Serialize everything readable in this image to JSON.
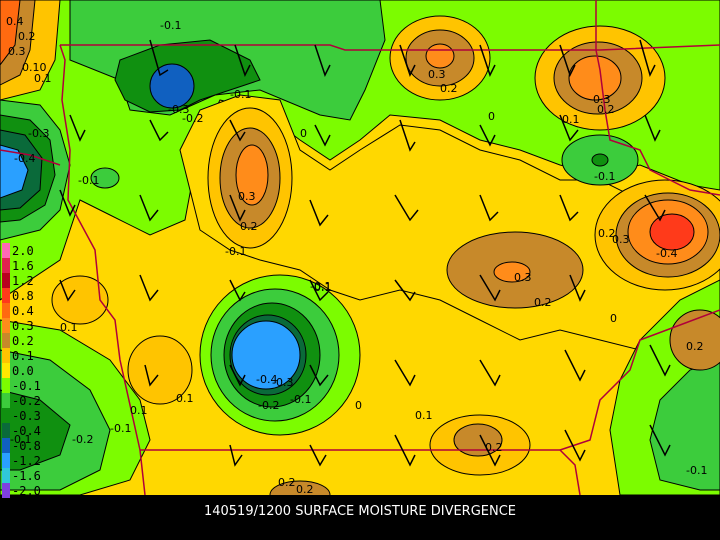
{
  "caption": "140519/1200 SURFACE MOISTURE DIVERGENCE",
  "legend": {
    "entries": [
      {
        "label": "2.0",
        "color": "#ff69b4"
      },
      {
        "label": "1.6",
        "color": "#e0204f"
      },
      {
        "label": "1.2",
        "color": "#b8001f"
      },
      {
        "label": "0.8",
        "color": "#ff3a1a"
      },
      {
        "label": "0.4",
        "color": "#ff6a10"
      },
      {
        "label": "0.3",
        "color": "#ff8c1a"
      },
      {
        "label": "0.2",
        "color": "#c7892a"
      },
      {
        "label": "0.1",
        "color": "#ffc400"
      },
      {
        "label": "0.0",
        "color": "#ffe800"
      },
      {
        "label": "-0.1",
        "color": "#7cfc00"
      },
      {
        "label": "-0.2",
        "color": "#3ccc3c"
      },
      {
        "label": "-0.3",
        "color": "#109010"
      },
      {
        "label": "-0.4",
        "color": "#0a6a3a"
      },
      {
        "label": "-0.8",
        "color": "#1060c0"
      },
      {
        "label": "-1.2",
        "color": "#2aa0ff"
      },
      {
        "label": "-1.6",
        "color": "#30c8d8"
      },
      {
        "label": "-2.0",
        "color": "#8040e0"
      }
    ]
  },
  "contour_labels": [
    "0.4",
    "0.2",
    "0.3",
    "0.1",
    "0",
    "-0.1",
    "-0.2",
    "-0.3",
    "-0.4"
  ],
  "map_labels": {
    "l1": "0.4",
    "l2": "0.2",
    "l3": "0.3",
    "l4": "0.10",
    "l5": "0.1",
    "l6": "-0.1",
    "l7": "-0.3",
    "l8": "-0.4",
    "l9": "-0.1",
    "l10": "-0.1",
    "l11": "-0.3",
    "l12": "-0.2",
    "l13": "0",
    "l14": "-0.1",
    "l15": "0.3",
    "l16": "0.2",
    "l17": "-0.1",
    "l18": "0.3",
    "l19": "0.2",
    "l20": "0",
    "l21": "0.1",
    "l22": "0.3",
    "l23": "0.2",
    "l24": "0",
    "l25": "-0.1",
    "l26": "0.3",
    "l27": "0.2",
    "l28": "0.1",
    "l29": "0.1",
    "l30": "-0.4",
    "l31": "-0.3",
    "l32": "-0.2",
    "l33": "-0.1",
    "l34": "0",
    "l35": "0.1",
    "l36": "0.2",
    "l37": "0.2",
    "l38": "-0.1",
    "l39": "0.1",
    "l40": "0.2",
    "l41": "-0.2",
    "l42": "-0.1",
    "l43": "0.2",
    "l44": "-0.1",
    "l45": "0.3",
    "l46": "-0.4",
    "l47": "0.2",
    "l48": "0.1"
  }
}
